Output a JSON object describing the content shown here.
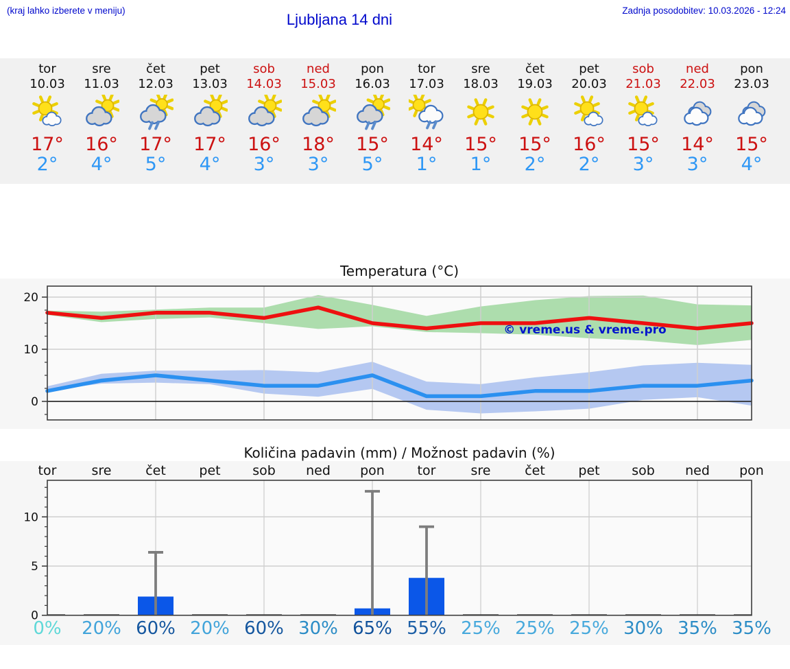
{
  "header": {
    "hint": "(kraj lahko izberete v meniju)",
    "title": "Ljubljana 14 dni",
    "updated": "Zadnja posodobitev: 10.03.2026 - 12:24"
  },
  "colors": {
    "accent_blue": "#0008cc",
    "tmax_red": "#cc1111",
    "tmin_blue": "#2e97f5",
    "line_red": "#ee1010",
    "line_blue": "#2b90f0",
    "band_green": "#5fbf5f",
    "band_blue": "#6f96e8",
    "bar_blue": "#0b57e8",
    "whisker_gray": "#7d7d7d",
    "strip_bg": "#f1f1f1",
    "chart_bg": "#f6f6f6"
  },
  "forecast_days": [
    {
      "name": "tor",
      "date": "10.03",
      "weekend": false,
      "icon": "sun-small-cloud",
      "tmax": "17°",
      "tmin": "2°"
    },
    {
      "name": "sre",
      "date": "11.03",
      "weekend": false,
      "icon": "cloud-sun",
      "tmax": "16°",
      "tmin": "4°"
    },
    {
      "name": "čet",
      "date": "12.03",
      "weekend": false,
      "icon": "cloud-sun-rain",
      "tmax": "17°",
      "tmin": "5°"
    },
    {
      "name": "pet",
      "date": "13.03",
      "weekend": false,
      "icon": "cloud-sun",
      "tmax": "17°",
      "tmin": "4°"
    },
    {
      "name": "sob",
      "date": "14.03",
      "weekend": true,
      "icon": "cloud-sun",
      "tmax": "16°",
      "tmin": "3°"
    },
    {
      "name": "ned",
      "date": "15.03",
      "weekend": true,
      "icon": "cloud-sun",
      "tmax": "18°",
      "tmin": "3°"
    },
    {
      "name": "pon",
      "date": "16.03",
      "weekend": false,
      "icon": "cloud-sun-rain",
      "tmax": "15°",
      "tmin": "5°"
    },
    {
      "name": "tor",
      "date": "17.03",
      "weekend": false,
      "icon": "sun-cloud-rain",
      "tmax": "14°",
      "tmin": "1°"
    },
    {
      "name": "sre",
      "date": "18.03",
      "weekend": false,
      "icon": "sun",
      "tmax": "15°",
      "tmin": "1°"
    },
    {
      "name": "čet",
      "date": "19.03",
      "weekend": false,
      "icon": "sun",
      "tmax": "15°",
      "tmin": "2°"
    },
    {
      "name": "pet",
      "date": "20.03",
      "weekend": false,
      "icon": "sun-small-cloud",
      "tmax": "16°",
      "tmin": "2°"
    },
    {
      "name": "sob",
      "date": "21.03",
      "weekend": true,
      "icon": "sun-small-cloud",
      "tmax": "15°",
      "tmin": "3°"
    },
    {
      "name": "ned",
      "date": "22.03",
      "weekend": true,
      "icon": "clouds",
      "tmax": "14°",
      "tmin": "3°"
    },
    {
      "name": "pon",
      "date": "23.03",
      "weekend": false,
      "icon": "clouds",
      "tmax": "15°",
      "tmin": "4°"
    }
  ],
  "chart_data": [
    {
      "type": "line",
      "title": "Temperatura (°C)",
      "watermark": "© vreme.us & vreme.pro",
      "categories": [
        "tor",
        "sre",
        "čet",
        "pet",
        "sob",
        "ned",
        "pon",
        "tor",
        "sre",
        "čet",
        "pet",
        "sob",
        "ned",
        "pon"
      ],
      "ylim": [
        -3.5,
        22.1
      ],
      "yticks": [
        0,
        10,
        20
      ],
      "grid_days": [
        3,
        5,
        7,
        9,
        11,
        13
      ],
      "series": [
        {
          "name": "max-temperature",
          "color": "#ee1010",
          "values": [
            17,
            16,
            17,
            17,
            16,
            18,
            15,
            14,
            15,
            15,
            16,
            15,
            14,
            15
          ]
        },
        {
          "name": "min-temperature",
          "color": "#2b90f0",
          "values": [
            2,
            4,
            5,
            4,
            3,
            3,
            5,
            1,
            1,
            2,
            2,
            3,
            3,
            4
          ]
        }
      ],
      "bands": [
        {
          "name": "max-range",
          "color": "#5fbf5f",
          "upper": [
            17.4,
            17.2,
            17.6,
            18.0,
            18.0,
            20.4,
            18.5,
            16.4,
            18.2,
            19.4,
            20.2,
            20.3,
            18.6,
            18.4
          ],
          "lower": [
            16.6,
            15.2,
            15.8,
            16.1,
            15.0,
            13.9,
            14.4,
            13.3,
            13.1,
            12.8,
            12.1,
            11.7,
            10.8,
            11.8
          ]
        },
        {
          "name": "min-range",
          "color": "#6f96e8",
          "upper": [
            2.9,
            5.3,
            5.9,
            5.9,
            6.0,
            5.6,
            7.6,
            3.8,
            3.3,
            4.6,
            5.6,
            6.9,
            7.4,
            7.0
          ],
          "lower": [
            2.1,
            3.4,
            3.6,
            3.3,
            1.5,
            0.9,
            2.4,
            -1.6,
            -2.3,
            -1.9,
            -1.4,
            0.3,
            0.8,
            -0.8
          ]
        }
      ]
    },
    {
      "type": "bar",
      "title": "Količina padavin (mm) / Možnost padavin (%)",
      "categories": [
        "tor",
        "sre",
        "čet",
        "pet",
        "sob",
        "ned",
        "pon",
        "tor",
        "sre",
        "čet",
        "pet",
        "sob",
        "ned",
        "pon"
      ],
      "ylim": [
        0,
        13.7
      ],
      "yticks": [
        0,
        5,
        10
      ],
      "grid_days": [
        3,
        5,
        7,
        9,
        11,
        13
      ],
      "values_mm": [
        0,
        0,
        1.9,
        0,
        0,
        0,
        0.7,
        3.8,
        0,
        0,
        0,
        0,
        0,
        0
      ],
      "whisker_mm": [
        0,
        0,
        6.4,
        0,
        0,
        0,
        12.6,
        9.0,
        0,
        0,
        0,
        0,
        0,
        0
      ],
      "prob_pct": [
        "0%",
        "20%",
        "60%",
        "20%",
        "60%",
        "30%",
        "65%",
        "55%",
        "25%",
        "25%",
        "25%",
        "30%",
        "35%",
        "35%"
      ],
      "prob_colors": [
        "#5fd8d8",
        "#42a4da",
        "#15579f",
        "#42a4da",
        "#15579f",
        "#2b8cc6",
        "#10519b",
        "#1c5fa6",
        "#47a9dc",
        "#47a9dc",
        "#47a9dc",
        "#2b8cc6",
        "#2b8cc6",
        "#2b8cc6"
      ]
    }
  ]
}
